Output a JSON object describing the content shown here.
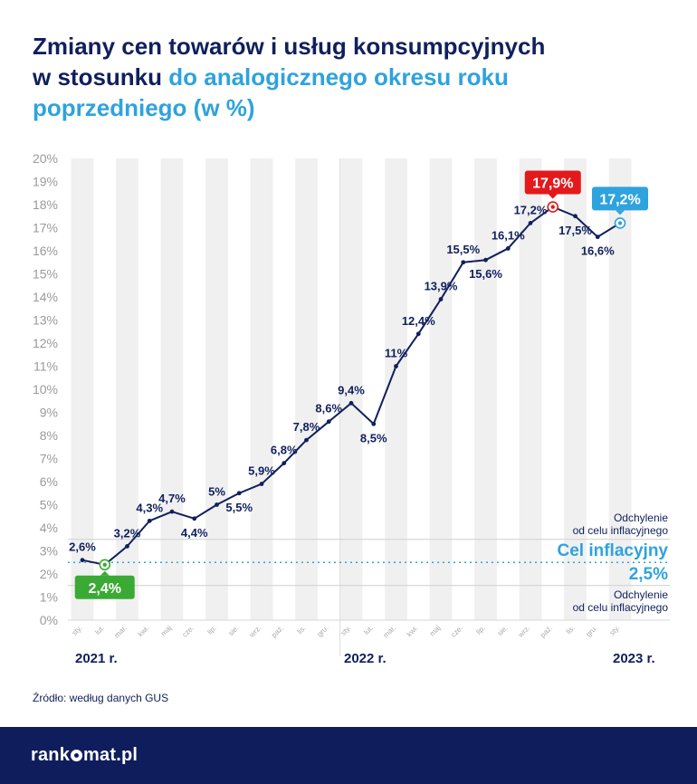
{
  "title": {
    "part1": "Zmiany cen towarów i usług konsumpcyjnych",
    "part2": "w stosunku ",
    "part3": "do analogicznego okresu roku",
    "part4": "poprzedniego (w %)"
  },
  "source": "Źródło: według danych GUS",
  "logo": {
    "pre": "rank",
    "post": "mat.pl"
  },
  "colors": {
    "navy": "#10205c",
    "blue": "#2ea3dd",
    "red": "#e3191c",
    "green": "#3aaa35",
    "band": "#f0f0f0"
  },
  "chart_data": {
    "type": "line",
    "title": "Zmiany cen towarów i usług konsumpcyjnych w stosunku do analogicznego okresu roku poprzedniego (w %)",
    "y_ticks": [
      "0%",
      "1%",
      "2%",
      "3%",
      "4%",
      "5%",
      "6%",
      "7%",
      "8%",
      "9%",
      "10%",
      "11%",
      "12%",
      "13%",
      "14%",
      "15%",
      "16%",
      "17%",
      "18%",
      "19%",
      "20%"
    ],
    "ylim": [
      0,
      20
    ],
    "categories": [
      "sty.",
      "lut.",
      "mar.",
      "kwi.",
      "maj",
      "cze.",
      "lip.",
      "sie.",
      "wrz.",
      "paź.",
      "lis.",
      "gru.",
      "sty.",
      "lut.",
      "mar.",
      "kwi.",
      "maj",
      "cze.",
      "lip.",
      "sie.",
      "wrz.",
      "paź.",
      "lis.",
      "gru.",
      "sty."
    ],
    "values": [
      2.6,
      2.4,
      3.2,
      4.3,
      4.7,
      4.4,
      5.0,
      5.5,
      5.9,
      6.8,
      7.8,
      8.6,
      9.4,
      8.5,
      11.0,
      12.4,
      13.9,
      15.5,
      15.6,
      16.1,
      17.2,
      17.9,
      17.5,
      16.6,
      17.2
    ],
    "value_labels": [
      "2,6%",
      "2,4%",
      "3,2%",
      "4,3%",
      "4,7%",
      "4,4%",
      "5%",
      "5,5%",
      "5,9%",
      "6,8%",
      "7,8%",
      "8,6%",
      "9,4%",
      "8,5%",
      "11%",
      "12,4%",
      "13,9%",
      "15,5%",
      "15,6%",
      "16,1%",
      "17,2%",
      "17,9%",
      "17,5%",
      "16,6%",
      "17,2%"
    ],
    "year_labels": [
      {
        "label": "2021 r.",
        "index": 0
      },
      {
        "label": "2022 r.",
        "index": 12
      },
      {
        "label": "2023 r.",
        "index": 24
      }
    ],
    "target": {
      "value": 2.5,
      "label": "Cel inflacyjny",
      "value_label": "2,5%"
    },
    "deviation_band": {
      "lower": 1.5,
      "upper": 3.5,
      "label_line1": "Odchylenie",
      "label_line2": "od celu inflacyjnego"
    },
    "highlights": [
      {
        "index": 1,
        "style": "min",
        "color": "#3aaa35"
      },
      {
        "index": 21,
        "style": "max",
        "color": "#e3191c"
      },
      {
        "index": 24,
        "style": "last",
        "color": "#2ea3dd"
      }
    ],
    "grid": false
  }
}
